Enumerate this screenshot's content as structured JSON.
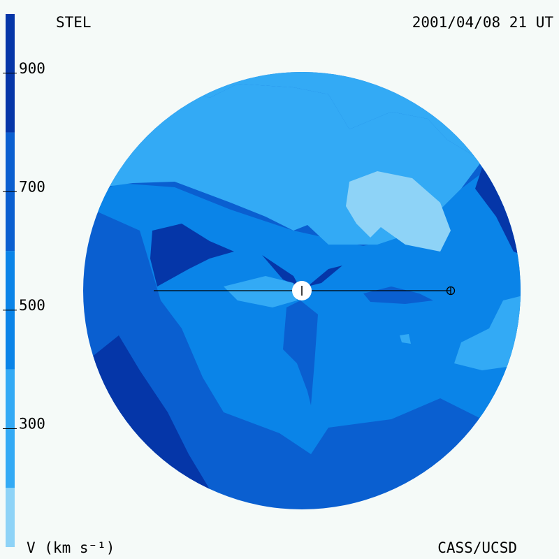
{
  "chart_data": {
    "type": "velocity-map",
    "title": "STEL",
    "date": "2001/04/08 21 UT",
    "colorbar_label": "V (km s⁻¹)",
    "credit": "CASS/UCSD",
    "colorbar_lim": [
      100,
      1000
    ],
    "colorbar_ticks": [
      300,
      500,
      700,
      900
    ],
    "levels": [
      100,
      200,
      400,
      600,
      800,
      1000
    ],
    "colors": [
      "#8ed3f7",
      "#33aaf5",
      "#0a84e8",
      "#0a5fd0",
      "#0536a8"
    ]
  }
}
